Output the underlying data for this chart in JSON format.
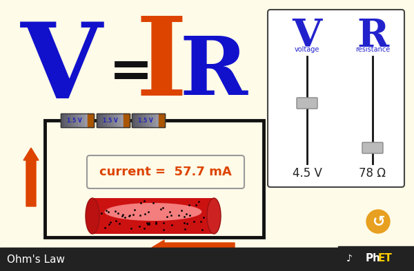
{
  "bg_color": "#FEFBE8",
  "title_bar_color": "#222222",
  "title_bar_text": "Ohm's Law",
  "title_bar_text_color": "#ffffff",
  "formula_V_text": "V",
  "formula_V_color": "#1111cc",
  "formula_eq_color": "#111111",
  "formula_I_text": "I",
  "formula_I_color": "#dd4400",
  "formula_R_text": "R",
  "formula_R_color": "#1111cc",
  "panel_bg": "#ffffff",
  "panel_border": "#444444",
  "panel_V_label": "V",
  "panel_V_color": "#2222cc",
  "panel_R_label": "R",
  "panel_R_color": "#2222cc",
  "panel_voltage_label": "voltage",
  "panel_resistance_label": "resistance",
  "panel_voltage_value": "4.5 V",
  "panel_resistance_value": "78 Ω",
  "current_text": "current =  57.7 mA",
  "current_color": "#dd4400",
  "circuit_color": "#111111",
  "arrow_color": "#dd4400",
  "battery_color_dark": "#555566",
  "battery_color_mid": "#777788",
  "battery_stripe_color": "#aa5500",
  "battery_label": "1.5 V",
  "battery_label_color": "#2222bb",
  "resistor_dark": "#cc1111",
  "resistor_light": "#ff9999",
  "slider_track_color": "#111111",
  "slider_handle_color": "#bbbbbb",
  "slider_handle_border": "#888888",
  "reload_color": "#e8a020",
  "phet_bg": "#222222"
}
